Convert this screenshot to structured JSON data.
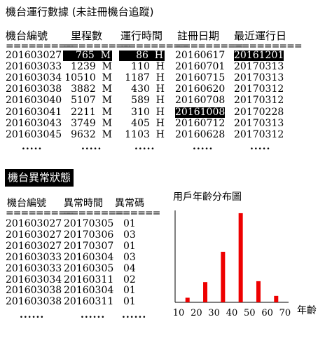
{
  "title": "機台運行數據 (未註冊機台追蹤)",
  "table1": {
    "headers": [
      "機台編號",
      "里程數",
      "運行時間",
      "註冊日期",
      "最近運行日"
    ],
    "separator": "=========",
    "rows": [
      [
        "201603027",
        "765  M",
        "86  H",
        "20160617",
        "20161201"
      ],
      [
        "201603033",
        "1239  M",
        "110  H",
        "20160701",
        "20170313"
      ],
      [
        "201603034",
        "10510  M",
        "1187  H",
        "20160715",
        "20170313"
      ],
      [
        "201603038",
        "3882  M",
        "430  H",
        "20160620",
        "20170312"
      ],
      [
        "201603040",
        "5107  M",
        "589  H",
        "20160708",
        "20170312"
      ],
      [
        "201603041",
        "2211  M",
        "310  H",
        "20161008",
        "20170228"
      ],
      [
        "201603043",
        "3749  M",
        "405  H",
        "20160712",
        "20170313"
      ],
      [
        "201603045",
        "9632  M",
        "1103  H",
        "20160628",
        "20170312"
      ]
    ],
    "ellipsis": "....."
  },
  "section2_title": "機台異常狀態",
  "table2": {
    "headers": [
      "機台編號",
      "異常時間",
      "異常碼"
    ],
    "separators": [
      "=========",
      "========",
      "======"
    ],
    "rows": [
      [
        "201603027",
        "20170305",
        "01"
      ],
      [
        "201603027",
        "20170306",
        "03"
      ],
      [
        "201603027",
        "20170307",
        "01"
      ],
      [
        "201603033",
        "20160304",
        "03"
      ],
      [
        "201603033",
        "20160305",
        "04"
      ],
      [
        "201603034",
        "20160311",
        "02"
      ],
      [
        "201603038",
        "20160304",
        "01"
      ],
      [
        "201603038",
        "20160311",
        "01"
      ]
    ],
    "ellipsis": "......"
  },
  "chart_data": {
    "type": "bar",
    "title": "用戶年齡分布圖",
    "xlabel": "年齡",
    "ylabel": "",
    "x_ticks": [
      10,
      20,
      30,
      40,
      50,
      60,
      70
    ],
    "xlim": [
      8,
      72
    ],
    "ylim": [
      0,
      100
    ],
    "x": [
      15,
      25,
      35,
      45,
      55,
      65
    ],
    "values": [
      5,
      22,
      55,
      97,
      23,
      7
    ],
    "bar_color": "#ee0000",
    "axis_color": "#000000"
  }
}
